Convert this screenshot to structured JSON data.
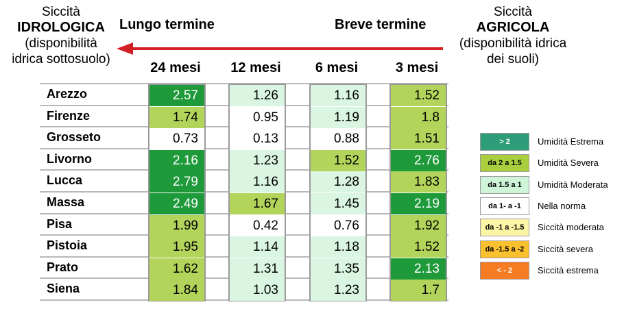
{
  "header": {
    "left": {
      "line1": "Siccità",
      "line2": "IDROLOGICA",
      "line3": "(disponibilità",
      "line4": "idrica sottosuolo)"
    },
    "right": {
      "line1": "Siccità",
      "line2": "AGRICOLA",
      "line3": "(disponibilità idrica",
      "line4": "dei suoli)"
    },
    "long_term": "Lungo termine",
    "short_term": "Breve termine"
  },
  "colors": {
    "arrow": "#d32027",
    "grid": "#b8b8b8",
    "extreme_wet": "#1f9a3a",
    "severe_wet": "#b3d45a",
    "moderate_wet": "#daf5e2",
    "normal": "#ffffff"
  },
  "chart_data": {
    "type": "table",
    "columns": [
      "24 mesi",
      "12 mesi",
      "6 mesi",
      "3 mesi"
    ],
    "rows": [
      {
        "name": "Arezzo",
        "values": [
          "2.57",
          "1.26",
          "1.16",
          "1.52"
        ]
      },
      {
        "name": "Firenze",
        "values": [
          "1.74",
          "0.95",
          "1.19",
          "1.8"
        ]
      },
      {
        "name": "Grosseto",
        "values": [
          "0.73",
          "0.13",
          "0.88",
          "1.51"
        ]
      },
      {
        "name": "Livorno",
        "values": [
          "2.16",
          "1.23",
          "1.52",
          "2.76"
        ]
      },
      {
        "name": "Lucca",
        "values": [
          "2.79",
          "1.16",
          "1.28",
          "1.83"
        ]
      },
      {
        "name": "Massa",
        "values": [
          "2.49",
          "1.67",
          "1.45",
          "2.19"
        ]
      },
      {
        "name": "Pisa",
        "values": [
          "1.99",
          "0.42",
          "0.76",
          "1.92"
        ]
      },
      {
        "name": "Pistoia",
        "values": [
          "1.95",
          "1.14",
          "1.18",
          "1.52"
        ]
      },
      {
        "name": "Prato",
        "values": [
          "1.62",
          "1.31",
          "1.35",
          "2.13"
        ]
      },
      {
        "name": "Siena",
        "values": [
          "1.84",
          "1.03",
          "1.23",
          "1.7"
        ]
      }
    ],
    "legend": [
      {
        "code": "> 2",
        "label": "Umidità Estrema",
        "color": "#2e9e7a",
        "text_color": "#ffffff"
      },
      {
        "code": "da 2 a 1.5",
        "label": "Umidità Severa",
        "color": "#a9cf3e",
        "text_color": "#000000"
      },
      {
        "code": "da 1.5 a 1",
        "label": "Umidità Moderata",
        "color": "#cff5d9",
        "text_color": "#000000"
      },
      {
        "code": "da 1- a -1",
        "label": "Nella norma",
        "color": "#ffffff",
        "text_color": "#000000"
      },
      {
        "code": "da -1 a -1.5",
        "label": "Siccità moderata",
        "color": "#fdf5a6",
        "text_color": "#000000"
      },
      {
        "code": "da -1.5 a -2",
        "label": "Siccità severa",
        "color": "#fbc02d",
        "text_color": "#000000"
      },
      {
        "code": "< - 2",
        "label": "Siccità estrema",
        "color": "#f57c22",
        "text_color": "#ffffff"
      }
    ]
  }
}
